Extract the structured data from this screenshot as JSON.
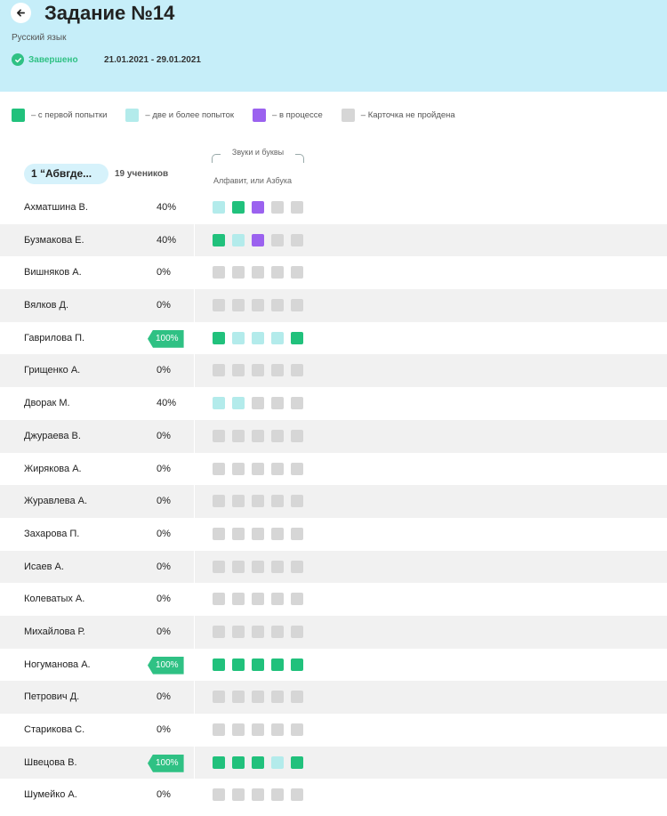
{
  "header": {
    "back_icon": "arrow-left-icon",
    "title": "Задание №14",
    "subject": "Русский язык",
    "status": "Завершено",
    "status_icon": "check-circle-icon",
    "dates": "21.01.2021 - 29.01.2021",
    "background": "#c6eef9"
  },
  "legend": [
    {
      "label": "– с первой попытки",
      "color": "#21c17c"
    },
    {
      "label": "– две и более попыток",
      "color": "#b3ebeb"
    },
    {
      "label": "– в процессе",
      "color": "#9b62ef"
    },
    {
      "label": "– Карточка не пройдена",
      "color": "#d6d6d6"
    }
  ],
  "group": {
    "name": "1 “Абвгде...",
    "students_count": "19 учеников"
  },
  "topic": {
    "title": "Звуки и буквы",
    "lesson": "Алфавит, или Азбука"
  },
  "students": [
    {
      "name": "Ахматшина В.",
      "percent": "40%",
      "cards": [
        "multi",
        "first",
        "progress",
        "none",
        "none"
      ]
    },
    {
      "name": "Бузмакова Е.",
      "percent": "40%",
      "cards": [
        "first",
        "multi",
        "progress",
        "none",
        "none"
      ]
    },
    {
      "name": "Вишняков А.",
      "percent": "0%",
      "cards": [
        "none",
        "none",
        "none",
        "none",
        "none"
      ]
    },
    {
      "name": "Вялков Д.",
      "percent": "0%",
      "cards": [
        "none",
        "none",
        "none",
        "none",
        "none"
      ]
    },
    {
      "name": "Гаврилова П.",
      "percent": "100%",
      "cards": [
        "first",
        "multi",
        "multi",
        "multi",
        "first"
      ]
    },
    {
      "name": "Грищенко А.",
      "percent": "0%",
      "cards": [
        "none",
        "none",
        "none",
        "none",
        "none"
      ]
    },
    {
      "name": "Дворак М.",
      "percent": "40%",
      "cards": [
        "multi",
        "multi",
        "none",
        "none",
        "none"
      ]
    },
    {
      "name": "Джураева В.",
      "percent": "0%",
      "cards": [
        "none",
        "none",
        "none",
        "none",
        "none"
      ]
    },
    {
      "name": "Жирякова А.",
      "percent": "0%",
      "cards": [
        "none",
        "none",
        "none",
        "none",
        "none"
      ]
    },
    {
      "name": "Журавлева А.",
      "percent": "0%",
      "cards": [
        "none",
        "none",
        "none",
        "none",
        "none"
      ]
    },
    {
      "name": "Захарова П.",
      "percent": "0%",
      "cards": [
        "none",
        "none",
        "none",
        "none",
        "none"
      ]
    },
    {
      "name": "Исаев А.",
      "percent": "0%",
      "cards": [
        "none",
        "none",
        "none",
        "none",
        "none"
      ]
    },
    {
      "name": "Колеватых А.",
      "percent": "0%",
      "cards": [
        "none",
        "none",
        "none",
        "none",
        "none"
      ]
    },
    {
      "name": "Михайлова Р.",
      "percent": "0%",
      "cards": [
        "none",
        "none",
        "none",
        "none",
        "none"
      ]
    },
    {
      "name": "Ногуманова А.",
      "percent": "100%",
      "cards": [
        "first",
        "first",
        "first",
        "first",
        "first"
      ]
    },
    {
      "name": "Петрович Д.",
      "percent": "0%",
      "cards": [
        "none",
        "none",
        "none",
        "none",
        "none"
      ]
    },
    {
      "name": "Старикова С.",
      "percent": "0%",
      "cards": [
        "none",
        "none",
        "none",
        "none",
        "none"
      ]
    },
    {
      "name": "Швецова В.",
      "percent": "100%",
      "cards": [
        "first",
        "first",
        "first",
        "multi",
        "first"
      ]
    },
    {
      "name": "Шумейко А.",
      "percent": "0%",
      "cards": [
        "none",
        "none",
        "none",
        "none",
        "none"
      ]
    }
  ]
}
